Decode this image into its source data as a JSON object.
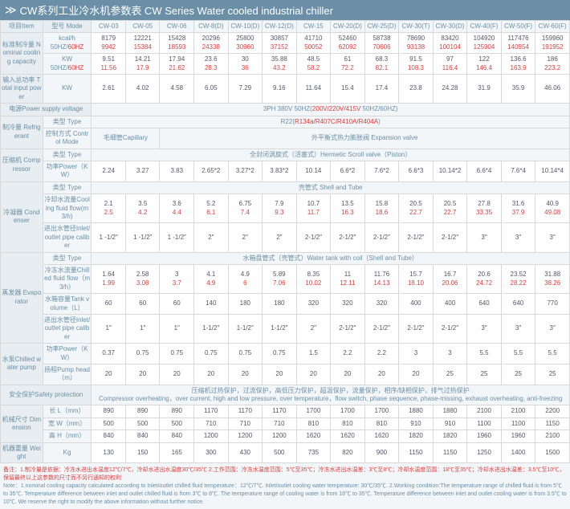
{
  "title": "CW系列工业冷水机参数表 CW Series Water cooled industrial chiller",
  "h": {
    "item": "项目Item",
    "mode": "型号 Mode"
  },
  "models": [
    "CW-03",
    "CW-05",
    "CW-06",
    "CW-8(D)",
    "CW-10(D)",
    "CW-12(D)",
    "CW-15",
    "CW-20(D)",
    "CW-25(D)",
    "CW-30(T)",
    "CW-30(D)",
    "CW-40(F)",
    "CW-50(F)",
    "CW-60(F)"
  ],
  "r": {
    "ncc": "标准制冷量\nNominal cooling capacity",
    "kcal": "kcal/h 50HZ/",
    "hz": "60HZ",
    "kw": "KW 50HZ/",
    "tip": "输入总功率\nTotal input power",
    "tipkw": "KW",
    "psv": "电源Power supply voltage",
    "psvv": "3PH 380V 50HZ(",
    "psvv2": "200V/220V/415V",
    "psvv3": " 50HZ/60HZ)",
    "ref": "制冷量\nRefrigerant",
    "rtype": "类型 Type",
    "rval": "R22(",
    "rval2": "R134a/R407C/R410A/R404A",
    "cmode": "控制方式 Control Mode",
    "cap": "毛细管Capillary",
    "exp": "外平衡式热力膨胀阀 Expansion valve",
    "comp": "压缩机\nCompressor",
    "ctype": "类型 Type",
    "cval": "全封闭涡旋式（活塞式）Hermetic Scroll valve（Piston）",
    "cpow": "功率Power（KW）",
    "cond": "冷凝器\nCondenser",
    "shell": "壳管式 Shell and Tube",
    "cfl": "冷却水流量Cooling fluid flow(m3/h)",
    "cal": "进出水管径Inlet/outlet pipe caliber",
    "evap": "蒸发器\nEvaporator",
    "wtank": "水箱盘管式（壳管式）Water tank with coil（Shell and Tube）",
    "chf": "冷冻水流量Chilled fluid flow（m3/h）",
    "tvol": "水箱容量Tank volume（L）",
    "pump": "水泵Chilled water pump",
    "ppow": "功率Power（KW）",
    "phead": "扬程Pump head（m）",
    "safe": "安全保护Safety protection",
    "safev": "压缩机过热保护，过流保护，高低压力保护，超温保护，流量保护，相序/缺相保护，排气过热保护\nCompressor overheating，over current, high and low pressure, over temperature，flow switch, phase sequence, phase-missing, exhaust overheating, anti-freezing",
    "dim": "机械尺寸\nDimension",
    "ll": "长 L（mm）",
    "ww": "宽 W（mm）",
    "hh": "高 H（mm）",
    "wt": "机器重量\nWeight",
    "kg": "Kg"
  },
  "d": {
    "kc1": [
      "8179",
      "12221",
      "15428",
      "20296",
      "25800",
      "30857",
      "41710",
      "52460",
      "58738",
      "78690",
      "83420",
      "104920",
      "117476",
      "159960"
    ],
    "kc2": [
      "9942",
      "15384",
      "18593",
      "24338",
      "30960",
      "37152",
      "50052",
      "62092",
      "70606",
      "93138",
      "100104",
      "125904",
      "140954",
      "191952"
    ],
    "kw1": [
      "9.51",
      "14.21",
      "17.94",
      "23.6",
      "30",
      "35.88",
      "48.5",
      "61",
      "68.3",
      "91.5",
      "97",
      "122",
      "136.6",
      "186"
    ],
    "kw2": [
      "11.56",
      "17.9",
      "21.62",
      "28.3",
      "36",
      "43.2",
      "58.2",
      "72.2",
      "82.1",
      "108.3",
      "116.4",
      "146.4",
      "163.9",
      "223.2"
    ],
    "tip": [
      "2.61",
      "4.02",
      "4.58",
      "6.05",
      "7.29",
      "9.16",
      "11.64",
      "15.4",
      "17.4",
      "23.8",
      "24.28",
      "31.9",
      "35.9",
      "46.06"
    ],
    "cpw": [
      "2.24",
      "3.27",
      "3.83",
      "2.65*2",
      "3.27*2",
      "3.83*2",
      "10.14",
      "6.6*2",
      "7.6*2",
      "6.6*3",
      "10.14*2",
      "6.6*4",
      "7.6*4",
      "10.14*4"
    ],
    "cf1": [
      "2.1",
      "3.5",
      "3.6",
      "5.2",
      "6.75",
      "7.9",
      "10.7",
      "13.5",
      "15.8",
      "20.5",
      "20.5",
      "27.8",
      "31.6",
      "40.9"
    ],
    "cf2": [
      "2.5",
      "4.2",
      "4.4",
      "6.1",
      "7.4",
      "9.3",
      "11.7",
      "16.3",
      "18.6",
      "22.7",
      "22.7",
      "33.35",
      "37.9",
      "49.08"
    ],
    "cc": [
      "1 -1/2″",
      "1 -1/2″",
      "1 -1/2″",
      "2″",
      "2″",
      "2″",
      "2-1/2″",
      "2-1/2″",
      "2-1/2″",
      "2-1/2″",
      "2-1/2″",
      "3″",
      "3″",
      "3″"
    ],
    "ch1": [
      "1.64",
      "2.58",
      "3",
      "4.1",
      "4.9",
      "5.89",
      "8.35",
      "11",
      "11.76",
      "15.7",
      "16.7",
      "20.6",
      "23.52",
      "31.88"
    ],
    "ch2": [
      "1.99",
      "3.08",
      "3.7",
      "4.9",
      "6",
      "7.06",
      "10.02",
      "12.11",
      "14.13",
      "18.10",
      "20.06",
      "24.72",
      "28.22",
      "38.26"
    ],
    "tv": [
      "60",
      "60",
      "60",
      "140",
      "180",
      "180",
      "320",
      "320",
      "320",
      "400",
      "400",
      "640",
      "640",
      "770"
    ],
    "ec": [
      "1″",
      "1″",
      "1″",
      "1-1/2″",
      "1-1/2″",
      "1-1/2″",
      "2″",
      "2-1/2″",
      "2-1/2″",
      "2-1/2″",
      "2-1/2″",
      "3″",
      "3″",
      "3″"
    ],
    "pp": [
      "0.37",
      "0.75",
      "0.75",
      "0.75",
      "0.75",
      "0.75",
      "1.5",
      "2.2",
      "2.2",
      "3",
      "3",
      "5.5",
      "5.5",
      "5.5"
    ],
    "ph": [
      "20",
      "20",
      "20",
      "20",
      "20",
      "20",
      "20",
      "20",
      "20",
      "20",
      "25",
      "25",
      "25",
      "25"
    ],
    "ll": [
      "890",
      "890",
      "890",
      "1170",
      "1170",
      "1170",
      "1700",
      "1700",
      "1700",
      "1880",
      "1880",
      "2100",
      "2100",
      "2200"
    ],
    "ww": [
      "500",
      "500",
      "500",
      "710",
      "710",
      "710",
      "810",
      "810",
      "810",
      "910",
      "910",
      "1100",
      "1100",
      "1150"
    ],
    "hh": [
      "840",
      "840",
      "840",
      "1200",
      "1200",
      "1200",
      "1620",
      "1620",
      "1620",
      "1820",
      "1820",
      "1960",
      "1960",
      "2100"
    ],
    "wt": [
      "130",
      "150",
      "165",
      "300",
      "430",
      "500",
      "735",
      "820",
      "900",
      "1150",
      "1150",
      "1250",
      "1400",
      "1500"
    ]
  },
  "foot1": "备注：1.制冷量是依据：冷冻水进出水温度12℃/7℃，冷却水进出水温度30℃/35℃ 2.工作范围：冷冻水温度范围：5℃至35℃；冷冻水进出水温差：3℃至8℃；冷却水温度范围：18℃至35℃；冷却水进出水温差：3.5℃至10℃，保留最终以上这参数的尺寸而不另行通知的权利",
  "foot2": "Note：1.nominal cooling capacity calculated according to Inlet/outlet chilled fluid temperature：12℃/7℃. Inlet/outlet cooling water temperature: 30℃/35℃. 2.Working condition:The temperature range of chilled fluid is from 5℃ to 35℃. Temperature difference between inlet and outlet chilled fluid is from 3℃ to 8℃. The temperature range of cooling water is from 18℃ to 35℃. Temperature difference between inlet and outlet cooling water is from 3.5℃ to 10℃. We reserve the right to modify the above information without further notice."
}
